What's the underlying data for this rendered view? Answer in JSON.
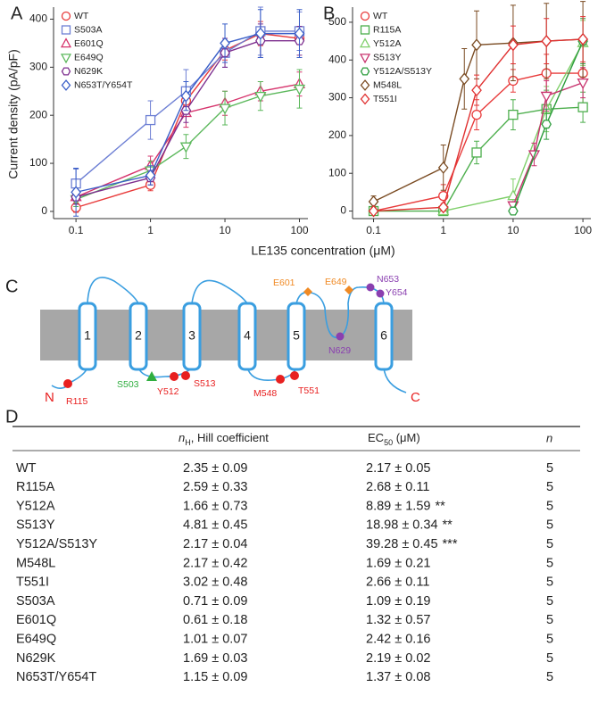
{
  "panels": {
    "a": "A",
    "b": "B",
    "c": "C",
    "d": "D"
  },
  "shared_x_label": "LE135 concentration (μM)",
  "chart_data": [
    {
      "type": "scatter",
      "ylabel": "Current density (pA/pF)",
      "log_x": true,
      "legend": "upper left",
      "xlim": [
        0.05,
        130
      ],
      "ylim": [
        -15,
        425
      ],
      "xticks": [
        0.1,
        1,
        10,
        100
      ],
      "yticks": [
        0,
        100,
        200,
        300,
        400
      ],
      "x": [
        0.1,
        1,
        3,
        10,
        30,
        100
      ],
      "series": [
        {
          "name": "WT",
          "color": "#e83b3b",
          "marker": "circle",
          "values": [
            8,
            55,
            230,
            335,
            370,
            360
          ],
          "errors": [
            10,
            12,
            25,
            20,
            25,
            25
          ]
        },
        {
          "name": "S503A",
          "color": "#6d7fd4",
          "marker": "square",
          "values": [
            58,
            190,
            250,
            330,
            375,
            375
          ],
          "errors": [
            30,
            40,
            45,
            30,
            50,
            40
          ]
        },
        {
          "name": "E601Q",
          "color": "#d6336c",
          "marker": "triangle",
          "values": [
            30,
            95,
            205,
            225,
            250,
            265
          ],
          "errors": [
            15,
            20,
            30,
            25,
            20,
            25
          ]
        },
        {
          "name": "E649Q",
          "color": "#5cb85c",
          "marker": "triangle-down",
          "values": [
            25,
            85,
            135,
            215,
            240,
            255
          ],
          "errors": [
            15,
            20,
            25,
            35,
            30,
            40
          ]
        },
        {
          "name": "N629K",
          "color": "#7d2f8f",
          "marker": "hexagon",
          "values": [
            30,
            70,
            210,
            330,
            355,
            355
          ],
          "errors": [
            15,
            15,
            25,
            30,
            35,
            30
          ]
        },
        {
          "name": "N653T/Y654T",
          "color": "#3a5fc8",
          "marker": "diamond",
          "values": [
            40,
            75,
            240,
            350,
            370,
            370
          ],
          "errors": [
            50,
            20,
            30,
            40,
            50,
            50
          ]
        }
      ]
    },
    {
      "type": "scatter",
      "log_x": true,
      "legend": "upper left",
      "xlim": [
        0.05,
        130
      ],
      "ylim": [
        -20,
        540
      ],
      "xticks": [
        0.1,
        1,
        10,
        100
      ],
      "yticks": [
        0,
        100,
        200,
        300,
        400,
        500
      ],
      "series": [
        {
          "name": "WT",
          "color": "#e83b3b",
          "marker": "circle",
          "x": [
            0.1,
            1,
            3,
            10,
            30,
            100
          ],
          "values": [
            0,
            40,
            255,
            345,
            365,
            365
          ],
          "errors": [
            5,
            30,
            40,
            30,
            50,
            80
          ]
        },
        {
          "name": "R115A",
          "color": "#4cae4c",
          "marker": "square",
          "x": [
            0.1,
            1,
            3,
            10,
            30,
            100
          ],
          "values": [
            0,
            0,
            155,
            255,
            270,
            275
          ],
          "errors": [
            5,
            5,
            30,
            40,
            50,
            40
          ]
        },
        {
          "name": "Y512A",
          "color": "#7fcf6a",
          "marker": "triangle",
          "x": [
            1,
            10,
            30,
            100
          ],
          "values": [
            0,
            40,
            270,
            445
          ],
          "errors": [
            5,
            45,
            60,
            60
          ]
        },
        {
          "name": "S513Y",
          "color": "#c8336e",
          "marker": "triangle-down",
          "x": [
            10,
            20,
            30,
            100
          ],
          "values": [
            15,
            150,
            305,
            340
          ],
          "errors": [
            10,
            30,
            40,
            40
          ]
        },
        {
          "name": "Y512A/S513Y",
          "color": "#2c9c3c",
          "marker": "hexagon",
          "x": [
            10,
            30,
            100
          ],
          "values": [
            0,
            230,
            450
          ],
          "errors": [
            5,
            40,
            60
          ]
        },
        {
          "name": "M548L",
          "color": "#7a4b22",
          "marker": "diamond",
          "x": [
            0.1,
            1,
            2,
            3,
            10,
            30,
            100
          ],
          "values": [
            25,
            115,
            350,
            440,
            445,
            450,
            455
          ],
          "errors": [
            15,
            60,
            80,
            90,
            100,
            100,
            100
          ]
        },
        {
          "name": "T551I",
          "color": "#e03030",
          "marker": "diamond",
          "x": [
            0.1,
            1,
            3,
            10,
            30,
            100
          ],
          "values": [
            0,
            10,
            320,
            440,
            450,
            455
          ],
          "errors": [
            5,
            10,
            40,
            50,
            60,
            60
          ]
        }
      ]
    }
  ],
  "diagram": {
    "helices": [
      "1",
      "2",
      "3",
      "4",
      "5",
      "6"
    ],
    "n_term": "N",
    "c_term": "C",
    "residues": [
      "R115",
      "S503",
      "Y512",
      "S513",
      "M548",
      "T551",
      "E601",
      "E649",
      "N629",
      "N653",
      "Y654"
    ]
  },
  "table": {
    "header": {
      "hill": {
        "symbol": "n",
        "sub": "H",
        "text": ", Hill coefficient"
      },
      "ec50": {
        "symbol": "EC",
        "sub": "50",
        "text": " (μM)"
      },
      "n": "n"
    },
    "rows": [
      {
        "name": "WT",
        "hill": "2.35 ± 0.09",
        "ec50": "2.17 ± 0.05",
        "n": 5
      },
      {
        "name": "R115A",
        "hill": "2.59 ± 0.33",
        "ec50": "2.68 ± 0.11",
        "n": 5
      },
      {
        "name": "Y512A",
        "hill": "1.66 ± 0.73",
        "ec50": "8.89 ± 1.59",
        "sig": "**",
        "n": 5
      },
      {
        "name": "S513Y",
        "hill": "4.81 ± 0.45",
        "ec50": "18.98 ± 0.34",
        "sig": "**",
        "n": 5
      },
      {
        "name": "Y512A/S513Y",
        "hill": "2.17 ± 0.04",
        "ec50": "39.28 ± 0.45",
        "sig": "***",
        "n": 5
      },
      {
        "name": "M548L",
        "hill": "2.17 ± 0.42",
        "ec50": "1.69 ± 0.21",
        "n": 5
      },
      {
        "name": "T551I",
        "hill": "3.02 ± 0.48",
        "ec50": "2.66 ± 0.11",
        "n": 5
      },
      {
        "name": "S503A",
        "hill": "0.71 ± 0.09",
        "ec50": "1.09 ± 0.19",
        "n": 5
      },
      {
        "name": "E601Q",
        "hill": "0.61 ± 0.18",
        "ec50": "1.32 ± 0.57",
        "n": 5
      },
      {
        "name": "E649Q",
        "hill": "1.01 ± 0.07",
        "ec50": "2.42 ± 0.16",
        "n": 5
      },
      {
        "name": "N629K",
        "hill": "1.69 ± 0.03",
        "ec50": "2.19 ± 0.02",
        "n": 5
      },
      {
        "name": "N653T/Y654T",
        "hill": "1.15 ± 0.09",
        "ec50": "1.37 ± 0.08",
        "n": 5
      }
    ]
  }
}
